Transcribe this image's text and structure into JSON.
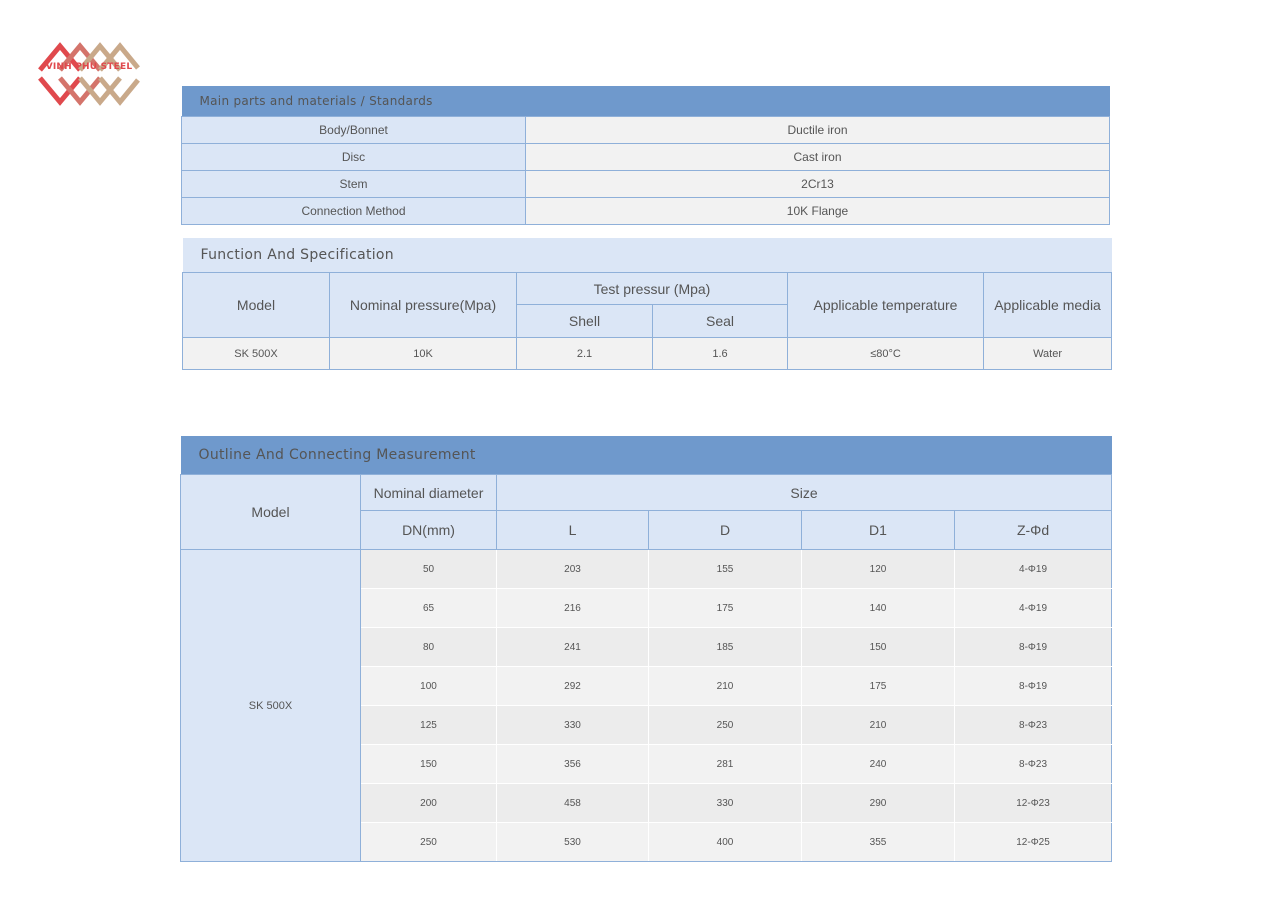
{
  "logo": {
    "text": "VINH PHU STEEL",
    "colors": [
      "#e0494d",
      "#c9a98a"
    ]
  },
  "materials": {
    "title": "Main parts and materials / Standards",
    "rows": [
      {
        "part": "Body/Bonnet",
        "material": "Ductile iron"
      },
      {
        "part": "Disc",
        "material": "Cast iron"
      },
      {
        "part": "Stem",
        "material": "2Cr13"
      },
      {
        "part": "Connection Method",
        "material": "10K Flange"
      }
    ]
  },
  "function": {
    "title": "Function And Specification",
    "headers": {
      "model": "Model",
      "nominal": "Nominal pressure(Mpa)",
      "test": "Test pressur (Mpa)",
      "shell": "Shell",
      "seal": "Seal",
      "temperature": "Applicable temperature",
      "media": "Applicable media"
    },
    "row": {
      "model": "SK 500X",
      "nominal": "10K",
      "shell": "2.1",
      "seal": "1.6",
      "temperature": "≤80°C",
      "media": "Water"
    }
  },
  "outline": {
    "title": "Outline And Connecting Measurement",
    "headers": {
      "model": "Model",
      "nominal_diameter": "Nominal diameter",
      "size": "Size",
      "dn": "DN(mm)",
      "l": "L",
      "d": "D",
      "d1": "D1",
      "z": "Z-Φd"
    },
    "model": "SK 500X",
    "rows": [
      [
        "50",
        "203",
        "155",
        "120",
        "4-Φ19"
      ],
      [
        "65",
        "216",
        "175",
        "140",
        "4-Φ19"
      ],
      [
        "80",
        "241",
        "185",
        "150",
        "8-Φ19"
      ],
      [
        "100",
        "292",
        "210",
        "175",
        "8-Φ19"
      ],
      [
        "125",
        "330",
        "250",
        "210",
        "8-Φ23"
      ],
      [
        "150",
        "356",
        "281",
        "240",
        "8-Φ23"
      ],
      [
        "200",
        "458",
        "330",
        "290",
        "12-Φ23"
      ],
      [
        "250",
        "530",
        "400",
        "355",
        "12-Φ25"
      ]
    ]
  }
}
